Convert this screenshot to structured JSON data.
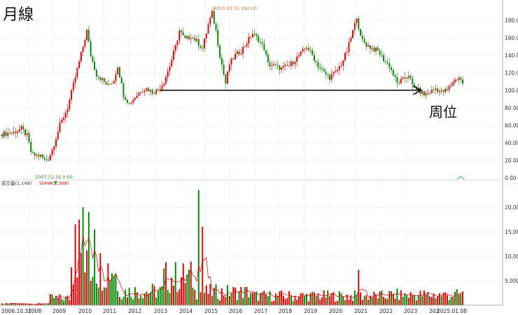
{
  "title": "月線",
  "annotation": "周位",
  "chart_data": [
    {
      "type": "candlestick",
      "panel": "price",
      "y_ticks": [
        "0.00",
        "20.00",
        "40.00",
        "60.00",
        "80.00",
        "100.00",
        "120.00",
        "140.00",
        "160.00",
        "180.00"
      ],
      "ylim": [
        0,
        200
      ],
      "high_label": "2015.03.31  192.00",
      "low_label": "2007.12.31  0.00",
      "reference_line_value": 100,
      "colors": {
        "up": "#e00000",
        "down": "#008800",
        "ma": "#d00000"
      }
    },
    {
      "type": "bar",
      "panel": "volume",
      "legend": {
        "volume": "成交量(1,149)",
        "ma": "5VMA(2,308)"
      },
      "y_ticks": [
        "5,000",
        "10,000",
        "15,000",
        "20,000"
      ],
      "ylim": [
        0,
        24000
      ],
      "x_labels": [
        "2006.10.31",
        "2008",
        "2009",
        "2010",
        "2011",
        "2012",
        "2013",
        "2014",
        "2015",
        "2016",
        "2017",
        "2018",
        "2019",
        "2020",
        "2021",
        "2022",
        "2023",
        "202",
        "2025.01.08"
      ]
    }
  ]
}
